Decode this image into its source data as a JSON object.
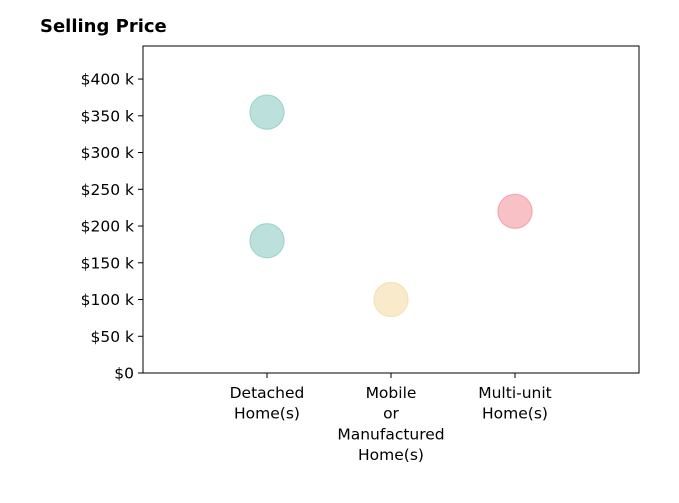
{
  "chart_data": {
    "type": "scatter",
    "title": "Selling Price",
    "xlabel": "",
    "ylabel": "",
    "categories": [
      [
        "Detached",
        "Home(s)"
      ],
      [
        "Mobile",
        "or",
        "Manufactured",
        "Home(s)"
      ],
      [
        "Multi-unit",
        "Home(s)"
      ]
    ],
    "y_ticks": [
      "$0",
      "$50 k",
      "$100 k",
      "$150 k",
      "$200 k",
      "$250 k",
      "$300 k",
      "$350 k",
      "$400 k"
    ],
    "ylim": [
      0,
      445000
    ],
    "grid": false,
    "points": [
      {
        "category": 0,
        "y": 355000,
        "color": "#9fd4cf"
      },
      {
        "category": 0,
        "y": 180000,
        "color": "#9fd4cf"
      },
      {
        "category": 1,
        "y": 100000,
        "color": "#f5e1b5"
      },
      {
        "category": 2,
        "y": 220000,
        "color": "#f5a7ad"
      }
    ]
  }
}
